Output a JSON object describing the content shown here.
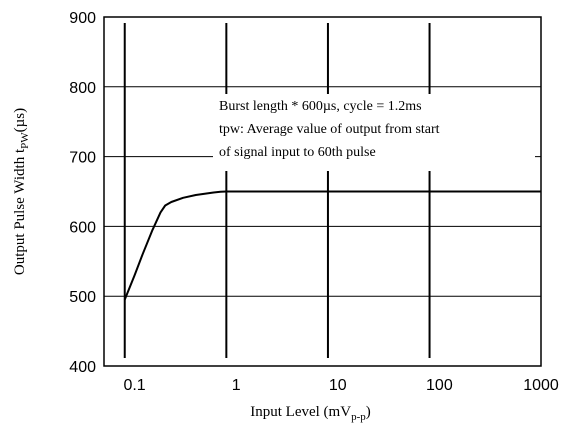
{
  "chart_data": {
    "type": "line",
    "xscale": "log",
    "xlim": [
      0.05,
      1000
    ],
    "ylim": [
      400,
      900
    ],
    "x_ticks": [
      "0.1",
      "1",
      "10",
      "100",
      "1000"
    ],
    "x_tick_values": [
      0.1,
      1,
      10,
      100,
      1000
    ],
    "y_ticks": [
      "400",
      "500",
      "600",
      "700",
      "800",
      "900"
    ],
    "y_tick_values": [
      400,
      500,
      600,
      700,
      800,
      900
    ],
    "ylabel": {
      "main": "Output Pulse Width t",
      "sub": "PW",
      "tail": "(µs)"
    },
    "xlabel": {
      "main": "Input Level (mV",
      "sub": "p-p",
      "tail": ")"
    },
    "grid": true,
    "vertical_gridlines_at": [
      0.08,
      0.8,
      8,
      80
    ],
    "annotation_lines": [
      "Burst length * 600µs, cycle = 1.2ms",
      "tpw: Average value of output from start",
      "of signal input to 60th pulse"
    ],
    "series": [
      {
        "x": [
          0.08,
          0.1,
          0.12,
          0.15,
          0.18,
          0.2,
          0.23,
          0.3,
          0.4,
          0.5,
          0.6,
          0.7,
          0.8,
          1,
          2,
          10,
          100,
          1000
        ],
        "y": [
          495,
          530,
          560,
          595,
          620,
          630,
          635,
          641,
          645,
          647,
          648.5,
          649.5,
          650,
          650,
          650,
          650,
          650,
          650
        ]
      }
    ]
  }
}
